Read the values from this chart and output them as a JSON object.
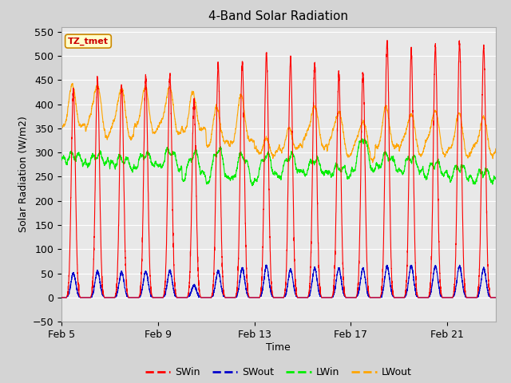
{
  "title": "4-Band Solar Radiation",
  "xlabel": "Time",
  "ylabel": "Solar Radiation (W/m2)",
  "ylim": [
    -50,
    560
  ],
  "yticks": [
    -50,
    0,
    50,
    100,
    150,
    200,
    250,
    300,
    350,
    400,
    450,
    500,
    550
  ],
  "xtick_labels": [
    "Feb 5",
    "Feb 9",
    "Feb 13",
    "Feb 17",
    "Feb 21"
  ],
  "xtick_positions": [
    0,
    4,
    8,
    12,
    16
  ],
  "n_days": 18,
  "fig_width": 6.4,
  "fig_height": 4.8,
  "dpi": 100,
  "bg_color": "#d4d4d4",
  "plot_bg_color": "#e8e8e8",
  "grid_color": "#ffffff",
  "sw_in_color": "#ff0000",
  "sw_out_color": "#0000cc",
  "lw_in_color": "#00ee00",
  "lw_out_color": "#ffa500",
  "annotation_text": "TZ_tmet",
  "annotation_fg": "#cc0000",
  "annotation_bg": "#ffffcc",
  "annotation_border": "#cc8800",
  "sw_peaks": [
    430,
    450,
    440,
    453,
    460,
    410,
    480,
    488,
    505,
    495,
    483,
    460,
    465,
    530,
    510,
    520,
    525,
    520
  ],
  "sw_out_peaks": [
    50,
    55,
    52,
    54,
    55,
    25,
    55,
    60,
    65,
    58,
    60,
    60,
    60,
    65,
    65,
    65,
    65,
    60
  ],
  "lw_in_night": [
    280,
    275,
    270,
    268,
    262,
    240,
    230,
    232,
    240,
    248,
    252,
    250,
    248,
    265,
    255,
    250,
    242,
    238
  ],
  "lw_in_day_peak": [
    295,
    295,
    288,
    298,
    305,
    300,
    308,
    295,
    295,
    295,
    285,
    270,
    330,
    295,
    290,
    278,
    272,
    262
  ],
  "lw_out_night": [
    345,
    335,
    330,
    338,
    340,
    338,
    308,
    312,
    298,
    305,
    312,
    298,
    290,
    302,
    298,
    298,
    290,
    295
  ],
  "lw_out_day_peak": [
    430,
    440,
    430,
    428,
    430,
    415,
    385,
    410,
    320,
    340,
    395,
    385,
    365,
    385,
    380,
    385,
    375,
    368
  ]
}
